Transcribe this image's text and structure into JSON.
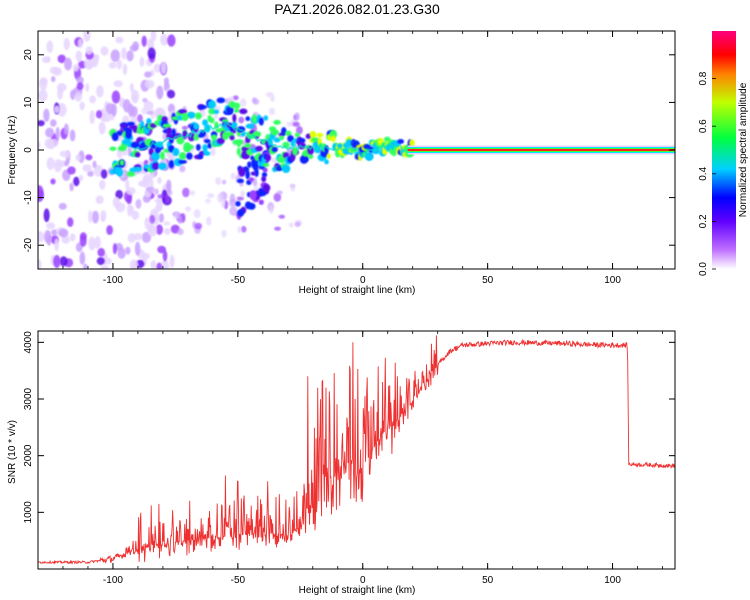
{
  "title": "PAZ1.2026.082.01.23.G30",
  "chart_data": [
    {
      "type": "heatmap",
      "name": "spectrogram",
      "xlabel": "Height of straight line (km)",
      "ylabel": "Frequency (Hz)",
      "xlim": [
        -130,
        125
      ],
      "ylim": [
        -25,
        25
      ],
      "xticks": [
        -100,
        -50,
        0,
        50,
        100
      ],
      "yticks": [
        -20,
        -10,
        0,
        10,
        20
      ],
      "colorbar": {
        "label": "Normalized spectral amplitude",
        "range": [
          0,
          1
        ],
        "ticks": [
          0.0,
          0.2,
          0.4,
          0.6,
          0.8
        ],
        "colors": [
          "#ffffff",
          "#b030ff",
          "#0000ff",
          "#00e0ff",
          "#00ff00",
          "#ffff00",
          "#ff0000",
          "#ff0080"
        ]
      },
      "ridge": {
        "description_points": [
          {
            "x": -95,
            "y": 0.0
          },
          {
            "x": -85,
            "y": 1.0
          },
          {
            "x": -75,
            "y": 2.5
          },
          {
            "x": -65,
            "y": 4.0
          },
          {
            "x": -55,
            "y": 5.5
          },
          {
            "x": -45,
            "y": 3.0
          },
          {
            "x": -35,
            "y": 1.0
          },
          {
            "x": -25,
            "y": 0.5
          },
          {
            "x": -15,
            "y": 0.5
          },
          {
            "x": -5,
            "y": 0.5
          },
          {
            "x": 0,
            "y": -0.5
          },
          {
            "x": 10,
            "y": 1.0
          },
          {
            "x": 20,
            "y": 0.0
          },
          {
            "x": 125,
            "y": 0.0
          }
        ],
        "steady_band": {
          "x_start": 18,
          "x_end": 125,
          "frequency": 0.0,
          "amplitude": 0.9
        }
      }
    },
    {
      "type": "line",
      "name": "snr",
      "xlabel": "Height of straight line (km)",
      "ylabel": "SNR (10 * v/v)",
      "xlim": [
        -130,
        125
      ],
      "ylim": [
        0,
        4200
      ],
      "xticks": [
        -100,
        -50,
        0,
        50,
        100
      ],
      "yticks": [
        1000,
        2000,
        3000,
        4000
      ],
      "color": "#ee3030",
      "trend": [
        {
          "x": -130,
          "y": 120
        },
        {
          "x": -110,
          "y": 120
        },
        {
          "x": -100,
          "y": 180
        },
        {
          "x": -90,
          "y": 350
        },
        {
          "x": -80,
          "y": 450
        },
        {
          "x": -70,
          "y": 500
        },
        {
          "x": -60,
          "y": 550
        },
        {
          "x": -50,
          "y": 600
        },
        {
          "x": -40,
          "y": 650
        },
        {
          "x": -30,
          "y": 600
        },
        {
          "x": -25,
          "y": 750
        },
        {
          "x": -20,
          "y": 1100
        },
        {
          "x": -15,
          "y": 1500
        },
        {
          "x": -10,
          "y": 1750
        },
        {
          "x": -5,
          "y": 1900
        },
        {
          "x": 0,
          "y": 1800
        },
        {
          "x": 5,
          "y": 2200
        },
        {
          "x": 10,
          "y": 2500
        },
        {
          "x": 15,
          "y": 2700
        },
        {
          "x": 20,
          "y": 2950
        },
        {
          "x": 25,
          "y": 3300
        },
        {
          "x": 30,
          "y": 3600
        },
        {
          "x": 35,
          "y": 3850
        },
        {
          "x": 40,
          "y": 3950
        },
        {
          "x": 50,
          "y": 3980
        },
        {
          "x": 60,
          "y": 4000
        },
        {
          "x": 70,
          "y": 3990
        },
        {
          "x": 80,
          "y": 3980
        },
        {
          "x": 90,
          "y": 3960
        },
        {
          "x": 100,
          "y": 3950
        },
        {
          "x": 106,
          "y": 3950
        },
        {
          "x": 106.5,
          "y": 1850
        },
        {
          "x": 125,
          "y": 1820
        }
      ],
      "spikes": [
        {
          "x": -55,
          "y": 1650
        },
        {
          "x": -50,
          "y": 1550
        },
        {
          "x": -38,
          "y": 1550
        },
        {
          "x": -22,
          "y": 3400
        },
        {
          "x": -18,
          "y": 3200
        },
        {
          "x": -5,
          "y": 3500
        },
        {
          "x": -4,
          "y": 4000
        },
        {
          "x": -3,
          "y": 3000
        },
        {
          "x": 8,
          "y": 3300
        }
      ]
    }
  ]
}
